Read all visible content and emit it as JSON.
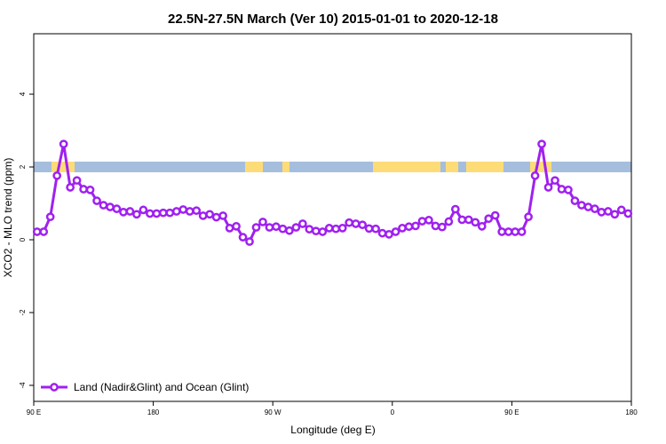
{
  "chart_data": {
    "type": "line",
    "title": "22.5N-27.5N March (Ver 10)   2015-01-01 to 2020-12-18",
    "xlabel": "Longitude (deg E)",
    "ylabel": "XCO2 - MLO trend (ppm)",
    "xlim": [
      90,
      540
    ],
    "ylim": [
      -4.44,
      5.66
    ],
    "xticks": [
      {
        "value": 90,
        "label": "90 E"
      },
      180,
      {
        "value": 270,
        "label": "90 W"
      },
      {
        "value": 360,
        "label": "0"
      },
      {
        "value": 450,
        "label": "90 E"
      },
      {
        "value": 540,
        "label": "180"
      }
    ],
    "yticks": [
      -4,
      -2,
      0,
      2,
      4
    ],
    "grid": false,
    "legend": "bottom-left",
    "x": [
      92.5,
      97.5,
      102.5,
      107.5,
      112.5,
      117.5,
      122.5,
      127.5,
      132.5,
      137.5,
      142.5,
      147.5,
      152.5,
      157.5,
      162.5,
      167.5,
      172.5,
      177.5,
      182.5,
      187.5,
      192.5,
      197.5,
      202.5,
      207.5,
      212.5,
      217.5,
      222.5,
      227.5,
      232.5,
      237.5,
      242.5,
      247.5,
      252.5,
      257.5,
      262.5,
      267.5,
      272.5,
      277.5,
      282.5,
      287.5,
      292.5,
      297.5,
      302.5,
      307.5,
      312.5,
      317.5,
      322.5,
      327.5,
      332.5,
      337.5,
      342.5,
      347.5,
      352.5,
      357.5,
      362.5,
      367.5,
      372.5,
      377.5,
      382.5,
      387.5,
      392.5,
      397.5,
      402.5,
      407.5,
      412.5,
      417.5,
      422.5,
      427.5,
      432.5,
      437.5,
      442.5,
      447.5,
      452.5,
      457.5,
      462.5,
      467.5,
      472.5,
      477.5,
      482.5,
      487.5,
      492.5,
      497.5,
      502.5,
      507.5,
      512.5,
      517.5,
      522.5,
      527.5,
      532.5,
      537.5
    ],
    "series": [
      {
        "name": "Land (Nadir&Glint) and Ocean (Glint)",
        "color": "#a020f0",
        "values": [
          0.22,
          0.22,
          0.63,
          1.76,
          2.63,
          1.44,
          1.63,
          1.39,
          1.37,
          1.07,
          0.95,
          0.9,
          0.85,
          0.76,
          0.78,
          0.7,
          0.82,
          0.72,
          0.72,
          0.74,
          0.74,
          0.78,
          0.83,
          0.78,
          0.8,
          0.66,
          0.7,
          0.62,
          0.66,
          0.32,
          0.37,
          0.07,
          -0.05,
          0.34,
          0.49,
          0.34,
          0.36,
          0.3,
          0.25,
          0.34,
          0.44,
          0.29,
          0.24,
          0.22,
          0.32,
          0.3,
          0.32,
          0.47,
          0.44,
          0.41,
          0.31,
          0.3,
          0.18,
          0.15,
          0.22,
          0.32,
          0.36,
          0.38,
          0.51,
          0.54,
          0.38,
          0.35,
          0.5,
          0.84,
          0.55,
          0.55,
          0.48,
          0.37,
          0.58,
          0.67,
          0.22,
          0.22,
          0.22,
          0.22,
          0.63,
          1.76,
          2.63,
          1.44,
          1.63,
          1.39,
          1.37,
          1.07,
          0.95,
          0.9,
          0.85,
          0.76,
          0.78,
          0.7,
          0.82,
          0.72
        ]
      }
    ]
  }
}
